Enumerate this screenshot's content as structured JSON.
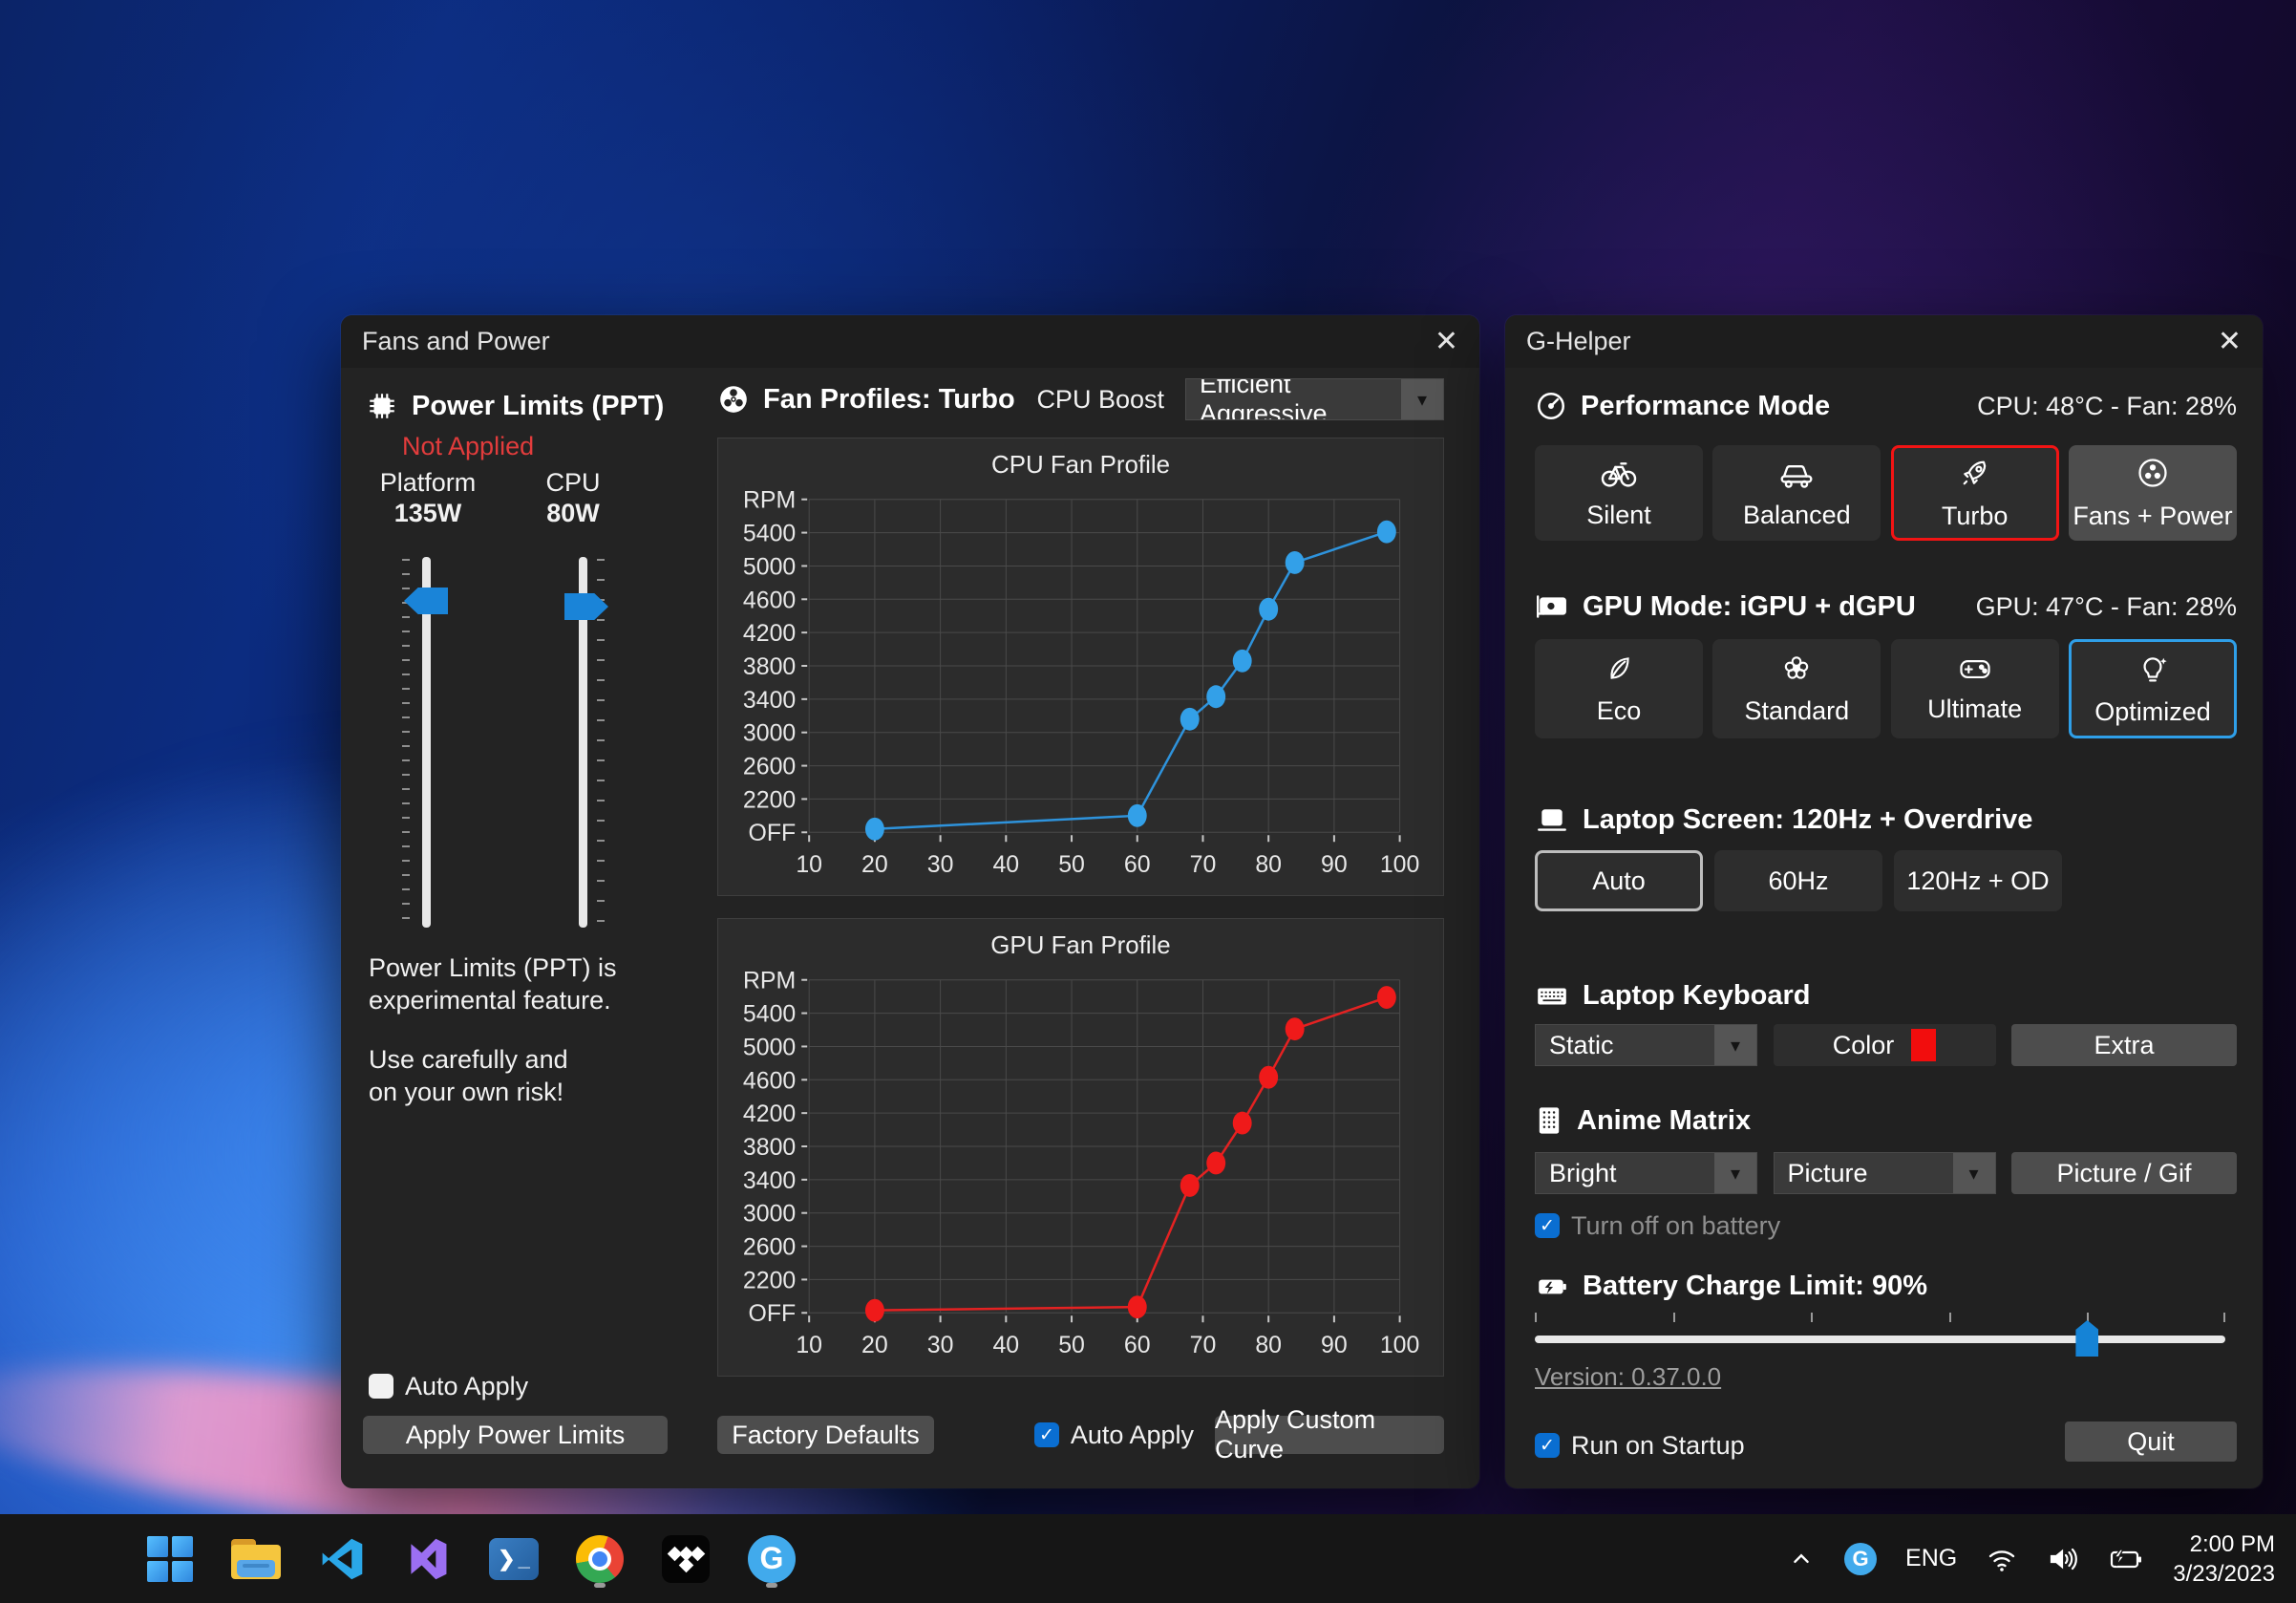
{
  "icons": {
    "close": "✕",
    "dropdown_arrow": "▾",
    "check": "✓"
  },
  "fans_window": {
    "title": "Fans and Power",
    "power_limits": {
      "heading": "Power Limits (PPT)",
      "status": "Not Applied",
      "platform_label": "Platform",
      "platform_value": "135W",
      "cpu_label": "CPU",
      "cpu_value": "80W",
      "note_line1": "Power Limits (PPT) is",
      "note_line2": "experimental feature.",
      "note_line3": "Use carefully and",
      "note_line4": "on your own risk!",
      "auto_apply_label": "Auto Apply",
      "apply_button": "Apply Power Limits"
    },
    "fan_profiles": {
      "heading": "Fan Profiles: Turbo",
      "cpu_boost_label": "CPU Boost",
      "cpu_boost_value": "Efficient Aggressive",
      "factory_defaults_button": "Factory Defaults",
      "auto_apply_label": "Auto Apply",
      "apply_custom_curve_button": "Apply Custom Curve"
    }
  },
  "chart_data": [
    {
      "type": "line",
      "title": "CPU Fan Profile",
      "ylabel": "RPM",
      "x": [
        20,
        60,
        68,
        72,
        76,
        80,
        84,
        98
      ],
      "y": [
        1840,
        2000,
        3160,
        3430,
        3860,
        4480,
        5040,
        5410
      ],
      "x_ticks": [
        10,
        20,
        30,
        40,
        50,
        60,
        70,
        80,
        90,
        100
      ],
      "y_ticks_values": [
        1800,
        2200,
        2600,
        3000,
        3400,
        3800,
        4200,
        4600,
        5000,
        5400,
        5800
      ],
      "y_ticks_labels": [
        "OFF",
        "2200",
        "2600",
        "3000",
        "3400",
        "3800",
        "4200",
        "4600",
        "5000",
        "5400",
        "RPM"
      ],
      "xlim": [
        10,
        100
      ],
      "ylim": [
        1800,
        5800
      ],
      "grid": true,
      "legend": "none",
      "line_color": "#2e93dc",
      "point_color": "#33a0e8"
    },
    {
      "type": "line",
      "title": "GPU Fan Profile",
      "ylabel": "RPM",
      "x": [
        20,
        60,
        68,
        72,
        76,
        80,
        84,
        98
      ],
      "y": [
        1830,
        1870,
        3330,
        3600,
        4080,
        4630,
        5210,
        5590
      ],
      "x_ticks": [
        10,
        20,
        30,
        40,
        50,
        60,
        70,
        80,
        90,
        100
      ],
      "y_ticks_values": [
        1800,
        2200,
        2600,
        3000,
        3400,
        3800,
        4200,
        4600,
        5000,
        5400,
        5800
      ],
      "y_ticks_labels": [
        "OFF",
        "2200",
        "2600",
        "3000",
        "3400",
        "3800",
        "4200",
        "4600",
        "5000",
        "5400",
        "RPM"
      ],
      "xlim": [
        10,
        100
      ],
      "ylim": [
        1800,
        5800
      ],
      "grid": true,
      "legend": "none",
      "line_color": "#e42222",
      "point_color": "#ef1a1a"
    }
  ],
  "ghelper_window": {
    "title": "G-Helper",
    "performance": {
      "heading": "Performance Mode",
      "status": "CPU: 48°C  -   Fan: 28%",
      "modes": [
        {
          "label": "Silent"
        },
        {
          "label": "Balanced"
        },
        {
          "label": "Turbo"
        },
        {
          "label": "Fans + Power"
        }
      ],
      "selected": "Turbo"
    },
    "gpu": {
      "heading": "GPU Mode: iGPU + dGPU",
      "status": "GPU: 47°C  -   Fan: 28%",
      "modes": [
        {
          "label": "Eco"
        },
        {
          "label": "Standard"
        },
        {
          "label": "Ultimate"
        },
        {
          "label": "Optimized"
        }
      ],
      "selected": "Optimized"
    },
    "screen": {
      "heading": "Laptop Screen: 120Hz + Overdrive",
      "options": [
        {
          "label": "Auto"
        },
        {
          "label": "60Hz"
        },
        {
          "label": "120Hz + OD"
        }
      ],
      "selected": "Auto"
    },
    "keyboard": {
      "heading": "Laptop Keyboard",
      "mode_value": "Static",
      "color_button": "Color",
      "extra_button": "Extra"
    },
    "anime_matrix": {
      "heading": "Anime Matrix",
      "brightness_value": "Bright",
      "mode_value": "Picture",
      "picture_gif_button": "Picture / Gif",
      "battery_checkbox_label": "Turn off on battery"
    },
    "battery": {
      "heading": "Battery Charge Limit: 90%",
      "value_percent": 90
    },
    "version_link": "Version: 0.37.0.0",
    "run_on_startup_label": "Run on Startup",
    "quit_button": "Quit"
  },
  "taskbar": {
    "language": "ENG",
    "time": "2:00 PM",
    "date": "3/23/2023"
  },
  "colors": {
    "accent_blue": "#1a84d8",
    "selected_red_border": "#f21414",
    "selected_blue_border": "#2f9fe8",
    "chart_cpu": "#33a0e8",
    "chart_gpu": "#ef1a1a",
    "status_red": "#e23c3c"
  }
}
